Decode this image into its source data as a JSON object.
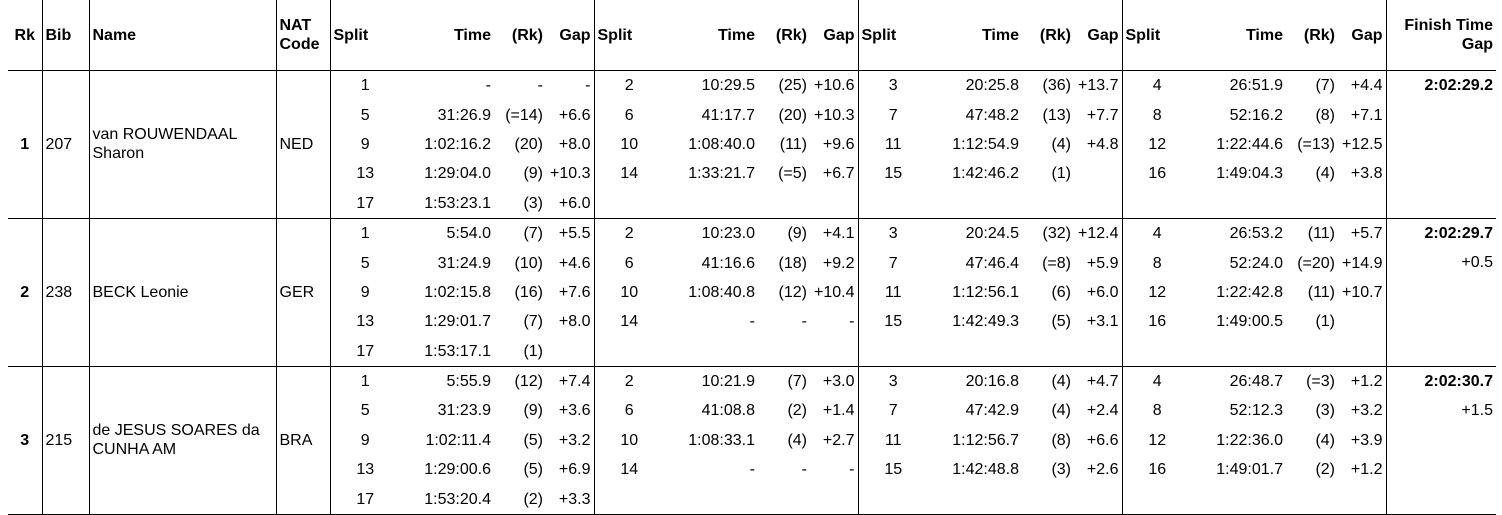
{
  "header": {
    "rk": "Rk",
    "bib": "Bib",
    "name": "Name",
    "nat": [
      "NAT",
      "Code"
    ],
    "split": "Split",
    "time": "Time",
    "split_rk": "(Rk)",
    "gap": "Gap",
    "finish": [
      "Finish Time",
      "Gap"
    ]
  },
  "rows": [
    {
      "rk": 1,
      "bib": 207,
      "name": "van ROUWENDAAL Sharon",
      "nat": "NED",
      "finish": "2:02:29.2",
      "splits": [
        [
          [
            1,
            "-",
            "-",
            "-"
          ],
          [
            2,
            "10:29.5",
            "(25)",
            "+10.6"
          ],
          [
            3,
            "20:25.8",
            "(36)",
            "+13.7"
          ],
          [
            4,
            "26:51.9",
            "(7)",
            "+4.4"
          ]
        ],
        [
          [
            5,
            "31:26.9",
            "(=14)",
            "+6.6"
          ],
          [
            6,
            "41:17.7",
            "(20)",
            "+10.3"
          ],
          [
            7,
            "47:48.2",
            "(13)",
            "+7.7"
          ],
          [
            8,
            "52:16.2",
            "(8)",
            "+7.1"
          ]
        ],
        [
          [
            9,
            "1:02:16.2",
            "(20)",
            "+8.0"
          ],
          [
            10,
            "1:08:40.0",
            "(11)",
            "+9.6"
          ],
          [
            11,
            "1:12:54.9",
            "(4)",
            "+4.8"
          ],
          [
            12,
            "1:22:44.6",
            "(=13)",
            "+12.5"
          ]
        ],
        [
          [
            13,
            "1:29:04.0",
            "(9)",
            "+10.3"
          ],
          [
            14,
            "1:33:21.7",
            "(=5)",
            "+6.7"
          ],
          [
            15,
            "1:42:46.2",
            "(1)"
          ],
          [
            16,
            "1:49:04.3",
            "(4)",
            "+3.8"
          ]
        ],
        [
          [
            17,
            "1:53:23.1",
            "(3)",
            "+6.0"
          ]
        ]
      ]
    },
    {
      "rk": 2,
      "bib": 238,
      "name": "BECK Leonie",
      "nat": "GER",
      "finish": "2:02:29.7",
      "finish_gap": "+0.5",
      "splits": [
        [
          [
            1,
            "5:54.0",
            "(7)",
            "+5.5"
          ],
          [
            2,
            "10:23.0",
            "(9)",
            "+4.1"
          ],
          [
            3,
            "20:24.5",
            "(32)",
            "+12.4"
          ],
          [
            4,
            "26:53.2",
            "(11)",
            "+5.7"
          ]
        ],
        [
          [
            5,
            "31:24.9",
            "(10)",
            "+4.6"
          ],
          [
            6,
            "41:16.6",
            "(18)",
            "+9.2"
          ],
          [
            7,
            "47:46.4",
            "(=8)",
            "+5.9"
          ],
          [
            8,
            "52:24.0",
            "(=20)",
            "+14.9"
          ]
        ],
        [
          [
            9,
            "1:02:15.8",
            "(16)",
            "+7.6"
          ],
          [
            10,
            "1:08:40.8",
            "(12)",
            "+10.4"
          ],
          [
            11,
            "1:12:56.1",
            "(6)",
            "+6.0"
          ],
          [
            12,
            "1:22:42.8",
            "(11)",
            "+10.7"
          ]
        ],
        [
          [
            13,
            "1:29:01.7",
            "(7)",
            "+8.0"
          ],
          [
            14,
            "-",
            "-",
            "-"
          ],
          [
            15,
            "1:42:49.3",
            "(5)",
            "+3.1"
          ],
          [
            16,
            "1:49:00.5",
            "(1)"
          ]
        ],
        [
          [
            17,
            "1:53:17.1",
            "(1)"
          ]
        ]
      ]
    },
    {
      "rk": 3,
      "bib": 215,
      "name": "de JESUS SOARES da CUNHA AM",
      "nat": "BRA",
      "finish": "2:02:30.7",
      "finish_gap": "+1.5",
      "splits": [
        [
          [
            1,
            "5:55.9",
            "(12)",
            "+7.4"
          ],
          [
            2,
            "10:21.9",
            "(7)",
            "+3.0"
          ],
          [
            3,
            "20:16.8",
            "(4)",
            "+4.7"
          ],
          [
            4,
            "26:48.7",
            "(=3)",
            "+1.2"
          ]
        ],
        [
          [
            5,
            "31:23.9",
            "(9)",
            "+3.6"
          ],
          [
            6,
            "41:08.8",
            "(2)",
            "+1.4"
          ],
          [
            7,
            "47:42.9",
            "(4)",
            "+2.4"
          ],
          [
            8,
            "52:12.3",
            "(3)",
            "+3.2"
          ]
        ],
        [
          [
            9,
            "1:02:11.4",
            "(5)",
            "+3.2"
          ],
          [
            10,
            "1:08:33.1",
            "(4)",
            "+2.7"
          ],
          [
            11,
            "1:12:56.7",
            "(8)",
            "+6.6"
          ],
          [
            12,
            "1:22:36.0",
            "(4)",
            "+3.9"
          ]
        ],
        [
          [
            13,
            "1:29:00.6",
            "(5)",
            "+6.9"
          ],
          [
            14,
            "-",
            "-",
            "-"
          ],
          [
            15,
            "1:42:48.8",
            "(3)",
            "+2.6"
          ],
          [
            16,
            "1:49:01.7",
            "(2)",
            "+1.2"
          ]
        ],
        [
          [
            17,
            "1:53:20.4",
            "(2)",
            "+3.3"
          ]
        ]
      ]
    }
  ]
}
